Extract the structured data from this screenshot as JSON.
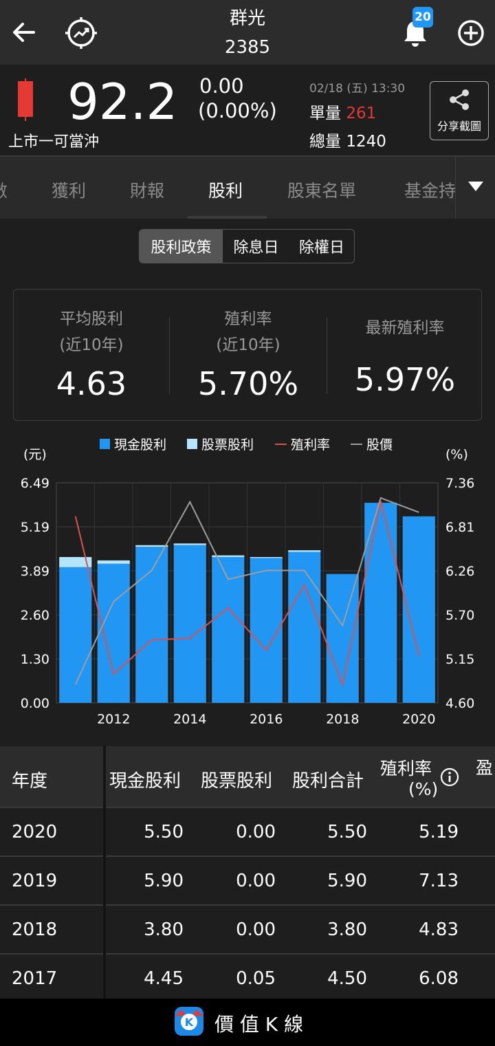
{
  "header": {
    "back_icon": "arrow-left-icon",
    "trend_icon": "trend-target-icon",
    "stock_name": "群光",
    "stock_code": "2385",
    "bell_icon": "bell-icon",
    "notification_count": "20",
    "add_icon": "circle-plus-icon"
  },
  "quote": {
    "price": "92.2",
    "change": "0.00",
    "change_pct": "(0.00%)",
    "market_label": "上市一可當沖",
    "datetime": "02/18 (五) 13:30",
    "single_volume_label": "單量",
    "single_volume": "261",
    "total_volume_label": "總量",
    "total_volume": "1240",
    "share_label": "分享截圖",
    "colors": {
      "up": "#e53935",
      "text": "#ffffff"
    }
  },
  "tabs": {
    "items": [
      "數",
      "獲利",
      "財報",
      "股利",
      "股東名單",
      "基金持"
    ],
    "active": "股利"
  },
  "segment": {
    "items": [
      "股利政策",
      "除息日",
      "除權日"
    ],
    "active": "股利政策"
  },
  "stats": {
    "avg_dividend_label1": "平均股利",
    "avg_dividend_label2": "(近10年)",
    "avg_dividend": "4.63",
    "yield_label1": "殖利率",
    "yield_label2": "(近10年)",
    "yield": "5.70%",
    "latest_yield_label": "最新殖利率",
    "latest_yield": "5.97%"
  },
  "legend": {
    "cash": "現金股利",
    "stock": "股票股利",
    "yield": "殖利率",
    "price": "股價"
  },
  "chart_data": {
    "type": "bar",
    "left_unit": "(元)",
    "right_unit": "(%)",
    "left_ticks": [
      "6.49",
      "5.19",
      "3.89",
      "2.60",
      "1.30",
      "0.00"
    ],
    "right_ticks": [
      "7.36",
      "6.81",
      "6.26",
      "5.70",
      "5.15",
      "4.60"
    ],
    "x_tick_labels": [
      "2012",
      "2014",
      "2016",
      "2018",
      "2020"
    ],
    "ylim_left": [
      0,
      6.49
    ],
    "ylim_right": [
      4.6,
      7.36
    ],
    "categories": [
      "2011",
      "2012",
      "2013",
      "2014",
      "2015",
      "2016",
      "2017",
      "2018",
      "2019",
      "2020"
    ],
    "series": [
      {
        "name": "現金股利",
        "type": "bar",
        "color": "#2196f3",
        "values": [
          4.0,
          4.1,
          4.6,
          4.65,
          4.3,
          4.27,
          4.45,
          3.8,
          5.9,
          5.5
        ]
      },
      {
        "name": "股票股利",
        "type": "bar",
        "color": "#b3e5fc",
        "values": [
          0.3,
          0.1,
          0.05,
          0.05,
          0.05,
          0.03,
          0.05,
          0.0,
          0.0,
          0.0
        ]
      },
      {
        "name": "殖利率",
        "type": "line",
        "axis": "right",
        "color": "#d9534f",
        "values": [
          6.94,
          4.96,
          5.39,
          5.41,
          5.79,
          5.26,
          6.08,
          4.83,
          7.13,
          5.19
        ]
      },
      {
        "name": "股價",
        "type": "line",
        "axis": "right",
        "color": "#9e9e9e",
        "values": [
          4.83,
          5.87,
          6.26,
          7.12,
          6.15,
          6.26,
          6.26,
          5.57,
          7.17,
          6.99
        ]
      }
    ],
    "grid": true,
    "legend_position": "top"
  },
  "table": {
    "headers": [
      "年度",
      "現金股利",
      "股票股利",
      "股利合計",
      "殖利率",
      "(%)",
      "盈"
    ],
    "info_icon": "info-circle-icon",
    "rows": [
      [
        "2020",
        "5.50",
        "0.00",
        "5.50",
        "5.19"
      ],
      [
        "2019",
        "5.90",
        "0.00",
        "5.90",
        "7.13"
      ],
      [
        "2018",
        "3.80",
        "0.00",
        "3.80",
        "4.83"
      ],
      [
        "2017",
        "4.45",
        "0.05",
        "4.50",
        "6.08"
      ]
    ]
  },
  "footer": {
    "app_name": "價 值 K 線",
    "logo_icon": "value-k-logo-icon"
  }
}
